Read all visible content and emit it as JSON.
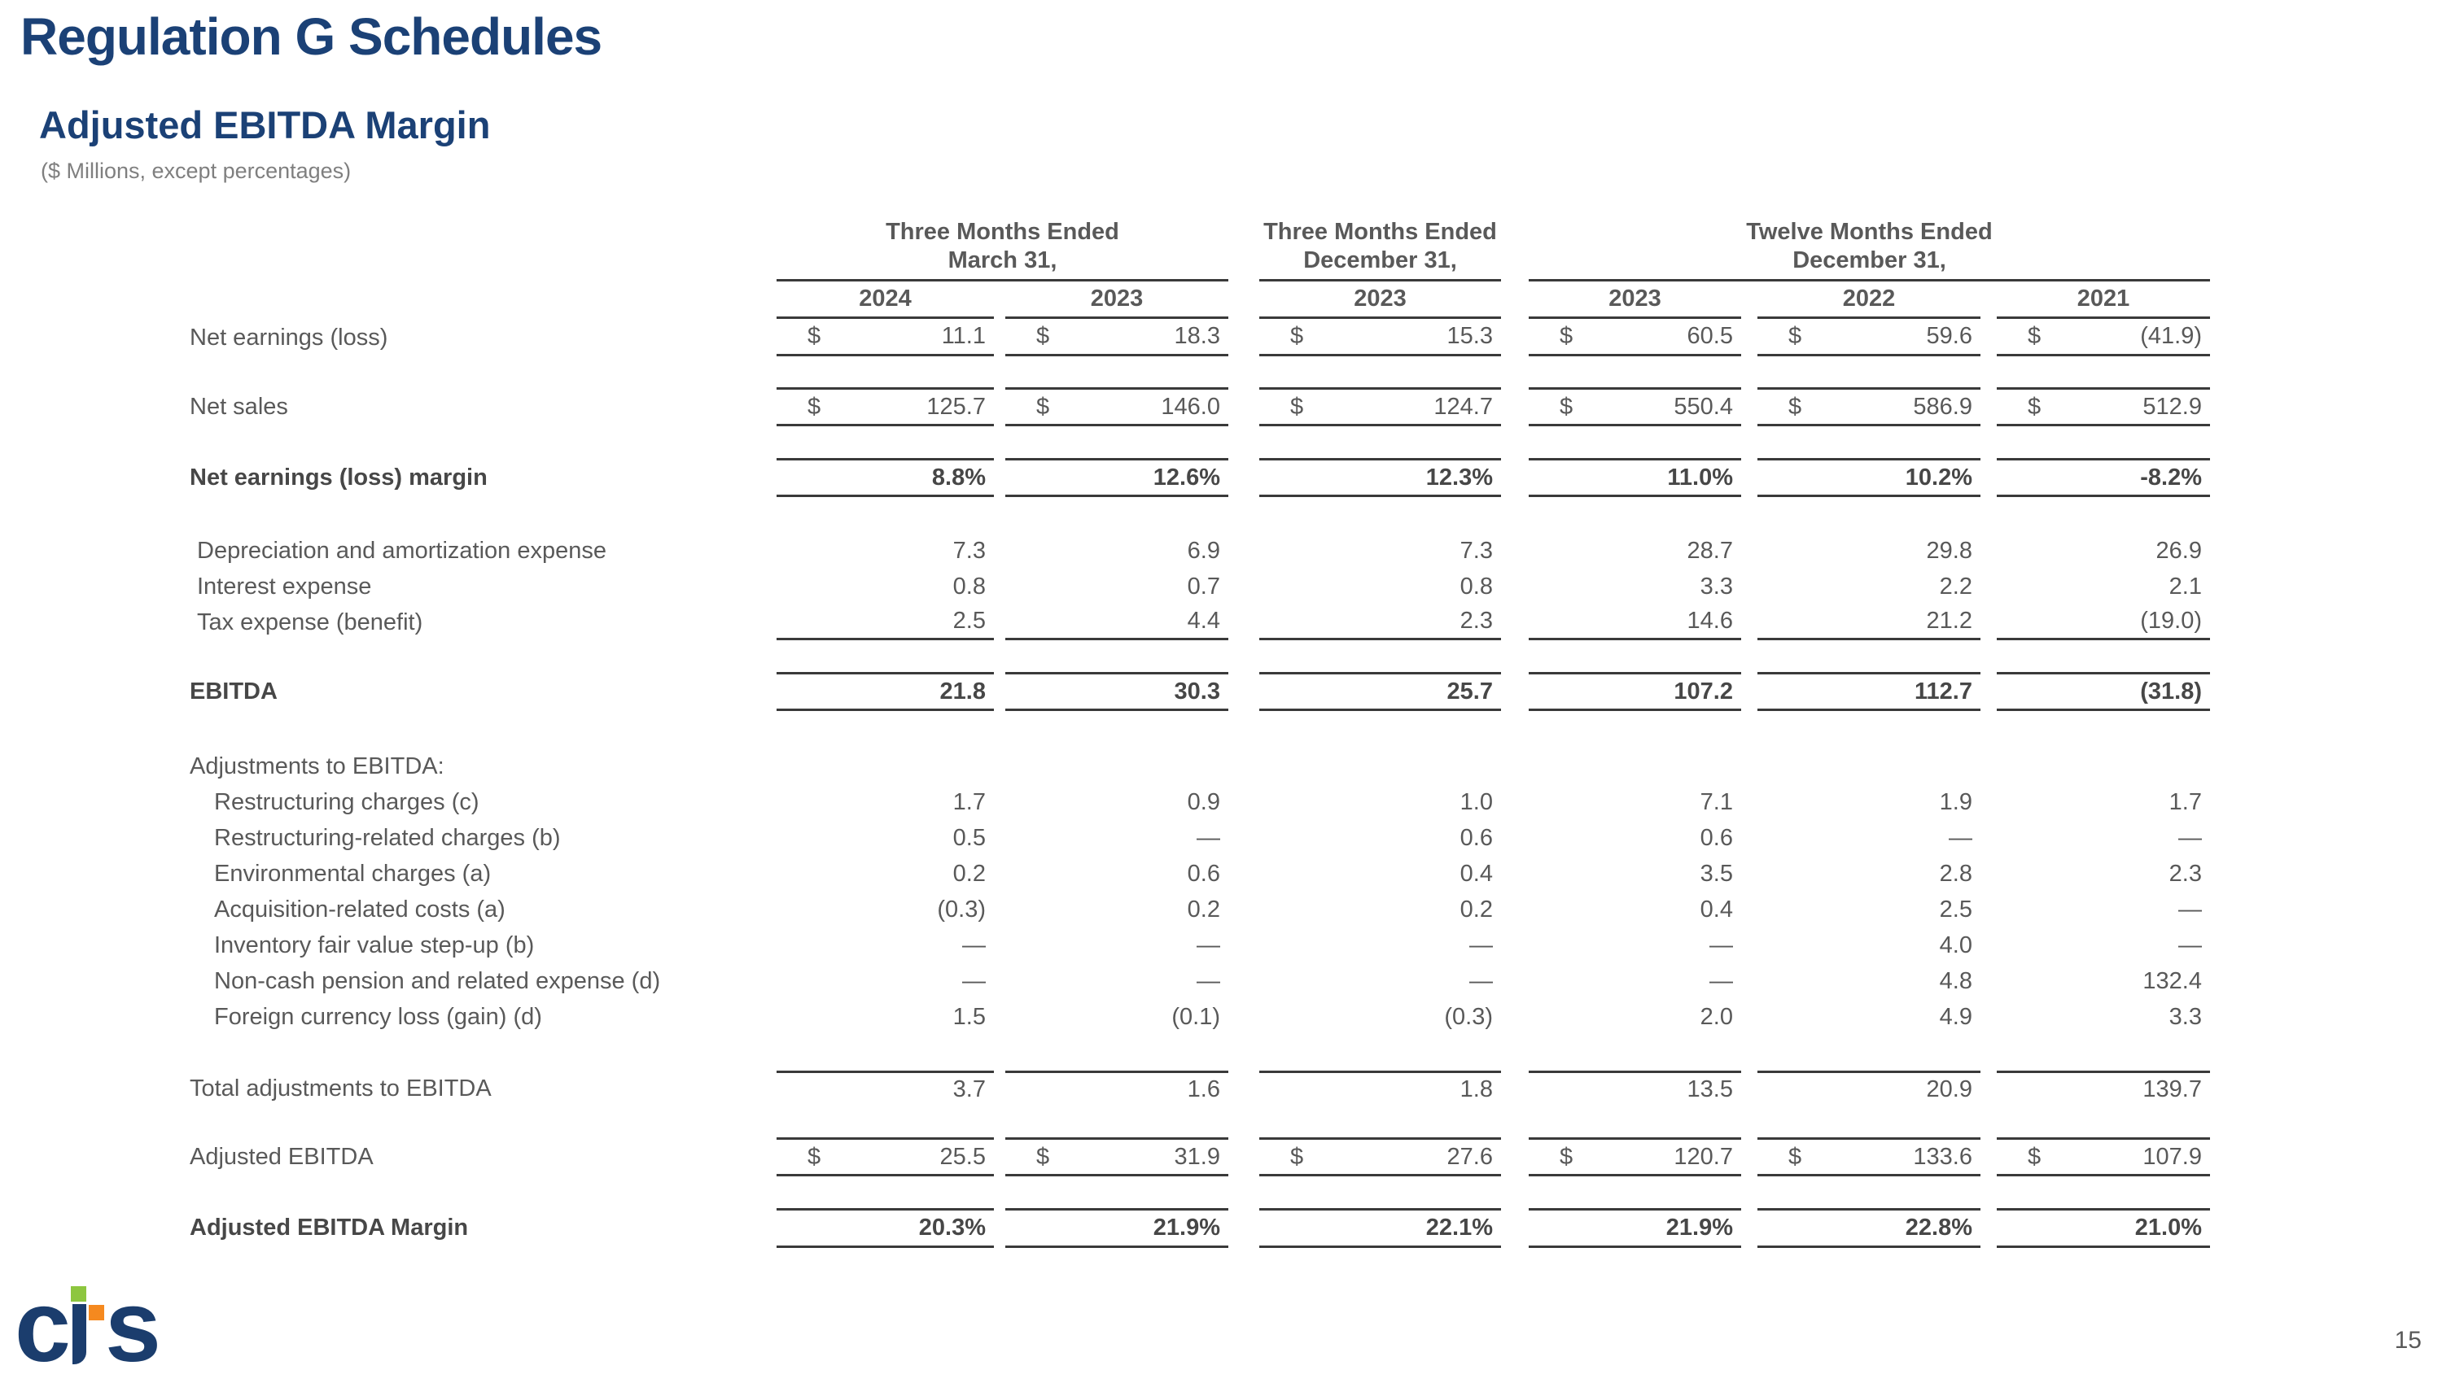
{
  "slide": {
    "title": "Regulation G Schedules",
    "subtitle": "Adjusted EBITDA Margin",
    "note": "($ Millions, except percentages)",
    "page_number": "15",
    "logo": {
      "c": "c",
      "s": "s"
    }
  },
  "colors": {
    "title_blue": "#1b4176",
    "table_text_gray": "#595959",
    "rule_line": "#3a3a3a",
    "logo_navy": "#1b3d6d",
    "logo_green": "#8dc63f",
    "logo_orange": "#f5891f"
  },
  "table": {
    "dollar_sign": "$",
    "column_groups": [
      {
        "title_line1": "Three Months Ended",
        "title_line2": "March 31,",
        "years": [
          "2024",
          "2023"
        ]
      },
      {
        "title_line1": "Three Months Ended",
        "title_line2": "December 31,",
        "years": [
          "2023"
        ]
      },
      {
        "title_line1": "Twelve Months Ended",
        "title_line2": "December 31,",
        "years": [
          "2023",
          "2022",
          "2021"
        ]
      }
    ],
    "rows": [
      {
        "id": "net-earnings",
        "label": "Net earnings (loss)",
        "type": "dollar",
        "style": "normal",
        "indent": 0,
        "borders": "bottom",
        "values": [
          "11.1",
          "18.3",
          "15.3",
          "60.5",
          "59.6",
          "(41.9)"
        ]
      },
      {
        "id": "net-sales",
        "label": "Net sales",
        "type": "dollar",
        "style": "normal",
        "indent": 0,
        "borders": "box",
        "values": [
          "125.7",
          "146.0",
          "124.7",
          "550.4",
          "586.9",
          "512.9"
        ]
      },
      {
        "id": "net-earnings-margin",
        "label": "Net earnings (loss) margin",
        "type": "plain",
        "style": "bold",
        "indent": 0,
        "borders": "box",
        "values": [
          "8.8%",
          "12.6%",
          "12.3%",
          "11.0%",
          "10.2%",
          "-8.2%"
        ]
      },
      {
        "id": "depreciation-amortization",
        "label": "Depreciation and amortization expense",
        "type": "plain",
        "style": "normal",
        "indent": 1,
        "borders": "none",
        "values": [
          "7.3",
          "6.9",
          "7.3",
          "28.7",
          "29.8",
          "26.9"
        ]
      },
      {
        "id": "interest-expense",
        "label": "Interest expense",
        "type": "plain",
        "style": "normal",
        "indent": 1,
        "borders": "none",
        "values": [
          "0.8",
          "0.7",
          "0.8",
          "3.3",
          "2.2",
          "2.1"
        ]
      },
      {
        "id": "tax-expense",
        "label": "Tax expense (benefit)",
        "type": "plain",
        "style": "normal",
        "indent": 1,
        "borders": "bottom",
        "values": [
          "2.5",
          "4.4",
          "2.3",
          "14.6",
          "21.2",
          "(19.0)"
        ]
      },
      {
        "id": "ebitda",
        "label": "EBITDA",
        "type": "plain",
        "style": "bold",
        "indent": 0,
        "borders": "box",
        "values": [
          "21.8",
          "30.3",
          "25.7",
          "107.2",
          "112.7",
          "(31.8)"
        ]
      },
      {
        "id": "adjustments-header",
        "label": "Adjustments to EBITDA:",
        "type": "section",
        "style": "normal",
        "indent": 0,
        "borders": "none",
        "values": []
      },
      {
        "id": "restructuring-charges",
        "label": "Restructuring charges (c)",
        "type": "plain",
        "style": "normal",
        "indent": 2,
        "borders": "none",
        "values": [
          "1.7",
          "0.9",
          "1.0",
          "7.1",
          "1.9",
          "1.7"
        ]
      },
      {
        "id": "restructuring-related-charges",
        "label": "Restructuring-related charges (b)",
        "type": "plain",
        "style": "normal",
        "indent": 2,
        "borders": "none",
        "values": [
          "0.5",
          "—",
          "0.6",
          "0.6",
          "—",
          "—"
        ]
      },
      {
        "id": "environmental-charges",
        "label": "Environmental charges (a)",
        "type": "plain",
        "style": "normal",
        "indent": 2,
        "borders": "none",
        "values": [
          "0.2",
          "0.6",
          "0.4",
          "3.5",
          "2.8",
          "2.3"
        ]
      },
      {
        "id": "acquisition-related-costs",
        "label": "Acquisition-related costs (a)",
        "type": "plain",
        "style": "normal",
        "indent": 2,
        "borders": "none",
        "values": [
          "(0.3)",
          "0.2",
          "0.2",
          "0.4",
          "2.5",
          "—"
        ]
      },
      {
        "id": "inventory-step-up",
        "label": "Inventory fair value step-up (b)",
        "type": "plain",
        "style": "normal",
        "indent": 2,
        "borders": "none",
        "values": [
          "—",
          "—",
          "—",
          "—",
          "4.0",
          "—"
        ]
      },
      {
        "id": "pension-expense",
        "label": "Non-cash pension and related expense (d)",
        "type": "plain",
        "style": "normal",
        "indent": 2,
        "borders": "none",
        "values": [
          "—",
          "—",
          "—",
          "—",
          "4.8",
          "132.4"
        ]
      },
      {
        "id": "fx-loss",
        "label": "Foreign currency loss (gain) (d)",
        "type": "plain",
        "style": "normal",
        "indent": 2,
        "borders": "none",
        "values": [
          "1.5",
          "(0.1)",
          "(0.3)",
          "2.0",
          "4.9",
          "3.3"
        ]
      },
      {
        "id": "total-adjustments",
        "label": "Total adjustments to EBITDA",
        "type": "plain",
        "style": "normal",
        "indent": 0,
        "borders": "top",
        "values": [
          "3.7",
          "1.6",
          "1.8",
          "13.5",
          "20.9",
          "139.7"
        ]
      },
      {
        "id": "adjusted-ebitda",
        "label": "Adjusted EBITDA",
        "type": "dollar",
        "style": "normal",
        "indent": 0,
        "borders": "box",
        "values": [
          "25.5",
          "31.9",
          "27.6",
          "120.7",
          "133.6",
          "107.9"
        ]
      },
      {
        "id": "adjusted-ebitda-margin",
        "label": "Adjusted EBITDA Margin",
        "type": "plain",
        "style": "bold",
        "indent": 0,
        "borders": "box",
        "values": [
          "20.3%",
          "21.9%",
          "22.1%",
          "21.9%",
          "22.8%",
          "21.0%"
        ]
      }
    ]
  }
}
